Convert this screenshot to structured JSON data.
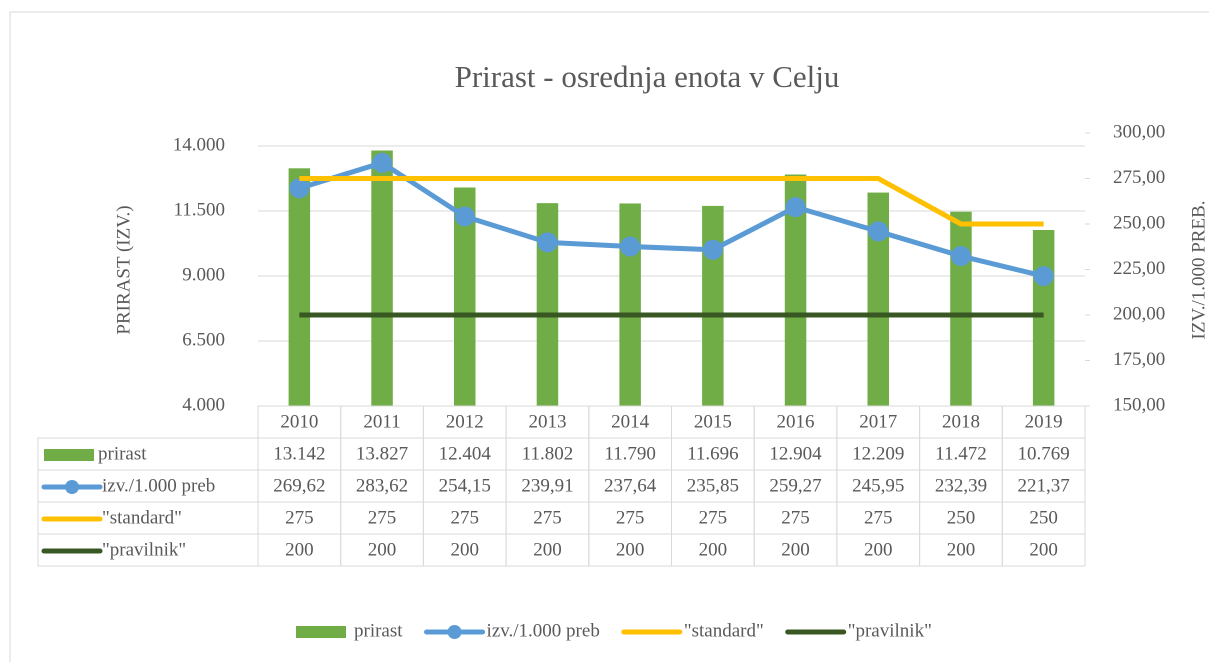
{
  "chart_data": {
    "type": "bar-line-table",
    "title": "Prirast - osrednja enota v Celju",
    "y_label": "PRIRAST (IZV.)",
    "y2_label": "IZV./1.000 PREB.",
    "categories": [
      "2010",
      "2011",
      "2012",
      "2013",
      "2014",
      "2015",
      "2016",
      "2017",
      "2018",
      "2019"
    ],
    "series": [
      {
        "name": "prirast",
        "kind": "bar",
        "color": "#70ad47",
        "axis": "y",
        "values": [
          13142,
          13827,
          12404,
          11802,
          11790,
          11696,
          12904,
          12209,
          11472,
          10769
        ],
        "value_labels": [
          "13.142",
          "13.827",
          "12.404",
          "11.802",
          "11.790",
          "11.696",
          "12.904",
          "12.209",
          "11.472",
          "10.769"
        ]
      },
      {
        "name": "izv./1.000 preb",
        "kind": "line-marker",
        "color": "#5b9bd5",
        "axis": "y2",
        "values": [
          269.62,
          283.62,
          254.15,
          239.91,
          237.64,
          235.85,
          259.27,
          245.95,
          232.39,
          221.37
        ],
        "value_labels": [
          "269,62",
          "283,62",
          "254,15",
          "239,91",
          "237,64",
          "235,85",
          "259,27",
          "245,95",
          "232,39",
          "221,37"
        ]
      },
      {
        "name": "\"standard\"",
        "kind": "line",
        "color": "#ffc000",
        "axis": "y2",
        "values": [
          275,
          275,
          275,
          275,
          275,
          275,
          275,
          275,
          250,
          250
        ]
      },
      {
        "name": "\"pravilnik\"",
        "kind": "line",
        "color": "#385723",
        "axis": "y2",
        "values": [
          200,
          200,
          200,
          200,
          200,
          200,
          200,
          200,
          200,
          200
        ]
      }
    ],
    "ylim": [
      4000,
      14500
    ],
    "yticks": [
      {
        "value": 4000,
        "label": "4.000"
      },
      {
        "value": 6500,
        "label": "6.500"
      },
      {
        "value": 9000,
        "label": "9.000"
      },
      {
        "value": 11500,
        "label": "11.500"
      },
      {
        "value": 14000,
        "label": "14.000"
      }
    ],
    "y2lim": [
      150,
      300
    ],
    "y2ticks": [
      {
        "value": 150,
        "label": "150,00"
      },
      {
        "value": 175,
        "label": "175,00"
      },
      {
        "value": 200,
        "label": "200,00"
      },
      {
        "value": 225,
        "label": "225,00"
      },
      {
        "value": 250,
        "label": "250,00"
      },
      {
        "value": 275,
        "label": "275,00"
      },
      {
        "value": 300,
        "label": "300,00"
      }
    ],
    "grid": true,
    "legend": "bottom"
  }
}
